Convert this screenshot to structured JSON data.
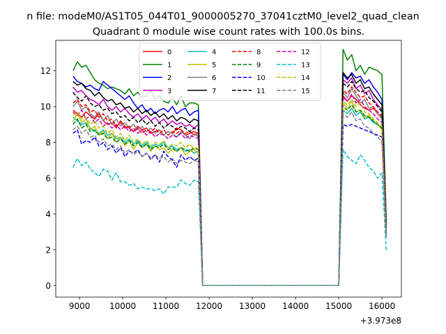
{
  "figure": {
    "suptitle": "n file: modeM0/AS1T05_044T01_9000005270_37041cztM0_level2_quad_clean",
    "offset_text": "+3.973e8"
  },
  "chart_data": {
    "type": "line",
    "title": "Quadrant 0 module wise count rates with 100.0s bins.",
    "xlabel": "",
    "ylabel": "",
    "xlim": [
      8450,
      16450
    ],
    "ylim": [
      -0.65,
      13.7
    ],
    "xticks": [
      9000,
      10000,
      11000,
      12000,
      13000,
      14000,
      15000,
      16000
    ],
    "xtick_labels": [
      "9000",
      "10000",
      "11000",
      "12000",
      "13000",
      "14000",
      "15000",
      "16000"
    ],
    "yticks": [
      0,
      2,
      4,
      6,
      8,
      10,
      12
    ],
    "ytick_labels": [
      "0",
      "2",
      "4",
      "6",
      "8",
      "10",
      "12"
    ],
    "grid": false,
    "legend_placement": "top-center",
    "legend_columns": 4,
    "x_gap": [
      11850,
      15000
    ],
    "x_start_1": 8850,
    "x_end_2": 16100,
    "series": [
      {
        "name": "0",
        "color": "#ff0000",
        "dash": "solid",
        "seg1": [
          9.8,
          9.6,
          9.4,
          9.7,
          9.5,
          9.3,
          9.6,
          9.2,
          9.0,
          9.1,
          8.8,
          9.2,
          8.9,
          8.8,
          8.6,
          8.9,
          8.7,
          8.8,
          8.5,
          8.6,
          8.7,
          8.4,
          8.6,
          8.5,
          8.8,
          8.7,
          8.4,
          8.5,
          8.6,
          8.5
        ],
        "seg2": [
          10.6,
          10.3,
          10.6,
          10.4,
          10.1,
          9.9,
          9.8,
          9.9,
          9.6,
          9.4,
          3.0
        ]
      },
      {
        "name": "1",
        "color": "#008000",
        "dash": "solid",
        "seg1": [
          12.0,
          12.5,
          12.2,
          12.3,
          11.9,
          11.5,
          11.3,
          11.2,
          11.0,
          11.1,
          11.0,
          10.9,
          10.7,
          11.0,
          10.6,
          10.8,
          10.5,
          10.6,
          10.9,
          10.4,
          10.6,
          10.3,
          10.2,
          10.5,
          10.1,
          10.6,
          10.0,
          10.2,
          10.2,
          10.1
        ],
        "seg2": [
          13.2,
          12.6,
          12.9,
          12.0,
          12.3,
          11.8,
          12.2,
          12.1,
          12.0,
          11.8,
          3.6
        ]
      },
      {
        "name": "2",
        "color": "#0000ff",
        "dash": "solid",
        "seg1": [
          11.7,
          11.4,
          11.3,
          11.1,
          11.2,
          11.0,
          10.9,
          11.4,
          11.2,
          11.0,
          10.8,
          10.6,
          10.4,
          10.6,
          10.2,
          9.9,
          10.1,
          9.7,
          9.9,
          9.6,
          9.8,
          9.9,
          9.7,
          10.0,
          9.6,
          9.8,
          9.9,
          9.5,
          9.7,
          9.8
        ],
        "seg2": [
          11.8,
          11.5,
          11.9,
          11.6,
          11.7,
          11.3,
          11.5,
          11.1,
          10.8,
          10.4,
          3.2
        ]
      },
      {
        "name": "3",
        "color": "#bf00bf",
        "dash": "solid",
        "seg1": [
          11.1,
          10.8,
          10.9,
          10.6,
          10.4,
          10.3,
          10.1,
          10.4,
          10.0,
          9.8,
          10.0,
          9.7,
          9.9,
          9.6,
          9.4,
          9.6,
          9.3,
          9.5,
          9.2,
          9.4,
          9.1,
          9.3,
          9.0,
          9.2,
          9.0,
          9.1,
          8.9,
          9.0,
          8.8,
          9.0
        ],
        "seg2": [
          11.5,
          11.3,
          11.6,
          11.0,
          11.2,
          10.7,
          10.9,
          10.4,
          10.1,
          9.8,
          3.4
        ]
      },
      {
        "name": "4",
        "color": "#00bfbf",
        "dash": "solid",
        "seg1": [
          9.4,
          9.2,
          9.0,
          9.1,
          8.8,
          8.6,
          8.5,
          8.7,
          8.4,
          8.5,
          8.2,
          8.3,
          8.0,
          8.2,
          7.9,
          8.1,
          7.8,
          8.0,
          7.7,
          7.9,
          7.8,
          8.0,
          7.7,
          7.8,
          7.6,
          7.7,
          7.5,
          7.6,
          7.4,
          7.5
        ],
        "seg2": [
          9.8,
          9.6,
          9.9,
          9.5,
          9.7,
          9.3,
          9.4,
          9.1,
          9.0,
          8.8,
          2.8
        ]
      },
      {
        "name": "5",
        "color": "#bfbf00",
        "dash": "solid",
        "seg1": [
          9.2,
          9.6,
          9.1,
          9.3,
          8.7,
          8.9,
          8.4,
          8.6,
          8.2,
          8.5,
          8.0,
          8.3,
          7.8,
          8.1,
          7.6,
          8.0,
          7.7,
          7.9,
          7.5,
          7.8,
          7.6,
          7.7,
          7.4,
          7.6,
          7.5,
          7.7,
          7.3,
          7.5,
          7.6,
          7.4
        ],
        "seg2": [
          10.2,
          9.9,
          10.3,
          9.7,
          9.8,
          9.4,
          9.5,
          9.2,
          9.0,
          8.7,
          2.7
        ]
      },
      {
        "name": "6",
        "color": "#808080",
        "dash": "solid",
        "seg1": [
          10.0,
          10.3,
          9.8,
          10.0,
          9.6,
          9.4,
          9.7,
          9.2,
          9.5,
          9.0,
          9.3,
          8.9,
          9.1,
          8.8,
          9.0,
          8.7,
          8.9,
          8.6,
          8.8,
          8.5,
          8.7,
          8.4,
          8.6,
          8.5,
          8.3,
          8.6,
          8.4,
          8.2,
          8.5,
          8.3
        ],
        "seg2": [
          10.8,
          10.5,
          11.0,
          10.6,
          10.2,
          10.4,
          9.9,
          10.0,
          9.6,
          9.3,
          3.0
        ]
      },
      {
        "name": "7",
        "color": "#000000",
        "dash": "solid",
        "seg1": [
          11.4,
          11.2,
          11.3,
          11.0,
          10.9,
          10.6,
          10.8,
          10.5,
          10.3,
          10.4,
          10.1,
          10.2,
          9.9,
          10.0,
          9.7,
          9.9,
          9.6,
          9.8,
          9.5,
          9.7,
          9.4,
          9.6,
          9.3,
          9.5,
          9.2,
          9.4,
          9.3,
          9.1,
          9.3,
          9.2
        ],
        "seg2": [
          11.9,
          11.6,
          11.8,
          11.3,
          11.5,
          11.0,
          11.1,
          10.7,
          10.4,
          10.1,
          3.3
        ]
      },
      {
        "name": "8",
        "color": "#ff0000",
        "dash": "dashed",
        "seg1": [
          10.2,
          10.4,
          10.0,
          10.1,
          9.7,
          9.8,
          9.4,
          9.6,
          9.2,
          9.3,
          8.9,
          9.1,
          8.8,
          8.9,
          8.6,
          8.8,
          8.5,
          8.7,
          8.6,
          8.8,
          8.5,
          8.7,
          8.4,
          8.6,
          8.5,
          8.7,
          8.5,
          8.6,
          8.4,
          8.5
        ],
        "seg2": [
          10.9,
          10.7,
          11.1,
          10.8,
          10.5,
          10.6,
          10.2,
          10.0,
          9.7,
          9.5,
          3.1
        ]
      },
      {
        "name": "9",
        "color": "#008000",
        "dash": "dashed",
        "seg1": [
          9.0,
          9.3,
          8.8,
          9.0,
          8.6,
          8.7,
          8.4,
          8.5,
          8.2,
          8.3,
          8.0,
          8.2,
          7.9,
          8.1,
          7.8,
          8.0,
          7.7,
          7.9,
          7.6,
          7.8,
          7.7,
          7.9,
          7.6,
          7.7,
          7.5,
          7.7,
          7.6,
          7.5,
          7.7,
          7.6
        ],
        "seg2": [
          10.0,
          9.8,
          10.1,
          9.7,
          9.8,
          9.5,
          9.4,
          9.2,
          9.0,
          8.8,
          2.9
        ]
      },
      {
        "name": "10",
        "color": "#0000ff",
        "dash": "dashed",
        "seg1": [
          8.5,
          8.7,
          7.9,
          8.1,
          8.0,
          8.3,
          7.8,
          8.0,
          7.6,
          7.8,
          7.4,
          7.7,
          7.2,
          7.5,
          7.4,
          7.6,
          7.2,
          7.4,
          7.1,
          7.3,
          6.9,
          7.5,
          7.2,
          7.0,
          6.6,
          7.3,
          7.0,
          7.2,
          7.0,
          7.1
        ],
        "seg2": [
          9.0,
          8.9,
          9.0,
          8.9,
          8.8,
          8.7,
          8.6,
          8.5,
          8.4,
          8.3,
          2.6
        ]
      },
      {
        "name": "11",
        "color": "#000000",
        "dash": "dashed",
        "seg1": [
          10.8,
          10.5,
          10.3,
          10.6,
          10.2,
          10.0,
          10.1,
          9.8,
          9.9,
          9.6,
          9.7,
          9.4,
          9.5,
          9.2,
          9.4,
          9.1,
          9.3,
          9.0,
          9.2,
          8.9,
          9.1,
          8.8,
          9.0,
          8.9,
          8.7,
          8.9,
          8.8,
          8.6,
          8.8,
          8.7
        ],
        "seg2": [
          11.3,
          11.1,
          11.4,
          11.0,
          10.8,
          10.9,
          10.5,
          10.3,
          10.0,
          9.7,
          3.2
        ]
      },
      {
        "name": "12",
        "color": "#bf00bf",
        "dash": "dashed",
        "seg1": [
          9.7,
          9.5,
          9.8,
          9.3,
          9.5,
          9.1,
          9.3,
          8.9,
          9.1,
          8.8,
          9.0,
          8.7,
          8.9,
          8.6,
          8.8,
          8.5,
          8.7,
          8.4,
          8.6,
          8.3,
          8.5,
          8.4,
          8.2,
          8.4,
          8.3,
          8.5,
          8.2,
          8.4,
          8.3,
          8.2
        ],
        "seg2": [
          10.5,
          10.3,
          10.7,
          10.2,
          10.4,
          10.0,
          9.8,
          9.6,
          9.3,
          9.1,
          2.9
        ]
      },
      {
        "name": "13",
        "color": "#00bfbf",
        "dash": "dashed",
        "seg1": [
          6.6,
          7.1,
          6.7,
          6.9,
          6.5,
          6.3,
          6.1,
          6.5,
          6.4,
          5.9,
          6.3,
          5.8,
          5.8,
          5.6,
          5.7,
          5.4,
          5.5,
          5.4,
          5.4,
          5.3,
          5.4,
          5.1,
          5.5,
          5.5,
          5.5,
          5.9,
          5.7,
          5.6,
          5.9,
          5.8
        ],
        "seg2": [
          7.6,
          7.2,
          7.0,
          6.8,
          7.3,
          7.0,
          6.6,
          6.4,
          6.0,
          6.3,
          1.9
        ]
      },
      {
        "name": "14",
        "color": "#bfbf00",
        "dash": "dashed",
        "seg1": [
          9.5,
          9.7,
          9.3,
          9.4,
          9.0,
          9.2,
          8.8,
          8.9,
          8.5,
          8.7,
          8.3,
          8.5,
          8.1,
          8.4,
          8.0,
          8.2,
          7.9,
          8.1,
          7.8,
          8.0,
          7.9,
          8.1,
          7.7,
          7.9,
          7.8,
          8.0,
          7.7,
          7.9,
          7.6,
          7.8
        ],
        "seg2": [
          10.3,
          10.1,
          10.4,
          10.0,
          10.2,
          9.7,
          9.6,
          9.3,
          9.1,
          8.9,
          2.8
        ]
      },
      {
        "name": "15",
        "color": "#808080",
        "dash": "dashed",
        "seg1": [
          8.7,
          8.9,
          8.5,
          8.7,
          8.3,
          8.4,
          8.0,
          8.2,
          7.8,
          7.9,
          7.6,
          7.8,
          7.4,
          7.6,
          7.3,
          7.5,
          7.2,
          7.4,
          7.0,
          7.3,
          7.1,
          7.2,
          6.9,
          7.1,
          6.8,
          7.0,
          6.9,
          6.8,
          7.0,
          6.9
        ],
        "seg2": [
          9.6,
          9.4,
          9.7,
          9.2,
          9.3,
          8.9,
          8.8,
          8.5,
          8.3,
          8.0,
          2.7
        ]
      }
    ]
  }
}
